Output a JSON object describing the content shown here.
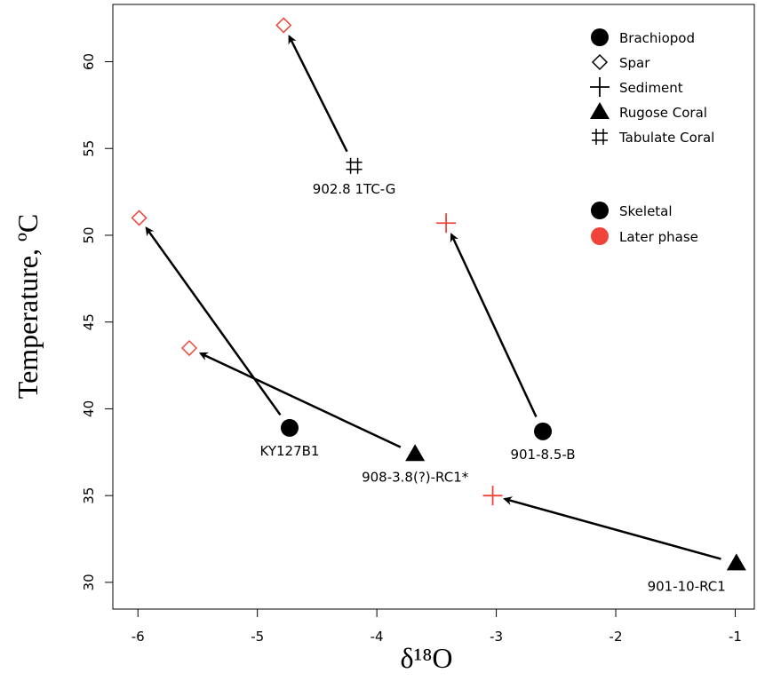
{
  "chart_data": {
    "type": "scatter",
    "xlabel": "δ¹⁸O",
    "ylabel": "Temperature, ºC",
    "xlim": [
      -6.21,
      -0.84
    ],
    "ylim": [
      28.46,
      63.3
    ],
    "xticks": [
      -6,
      -5,
      -4,
      -3,
      -2,
      -1
    ],
    "yticks": [
      30,
      35,
      40,
      45,
      50,
      55,
      60
    ],
    "legend": "upper right",
    "series": [
      {
        "name": "Brachiopod",
        "marker": "circle",
        "x": [
          -4.73,
          -2.61
        ],
        "values": [
          38.9,
          38.7
        ],
        "colors": [
          "#000000",
          "#000000"
        ],
        "point_labels": [
          "KY127B1",
          "901-8.5-B"
        ]
      },
      {
        "name": "Spar",
        "marker": "diamond",
        "x": [
          -4.78,
          -5.99,
          -5.57
        ],
        "values": [
          62.1,
          51.0,
          43.5
        ],
        "colors": [
          "#f0443a",
          "#f0443a",
          "#f0443a"
        ],
        "point_labels": [
          null,
          null,
          null
        ]
      },
      {
        "name": "Sediment",
        "marker": "plus",
        "x": [
          -3.42,
          -3.03
        ],
        "values": [
          50.7,
          35.0
        ],
        "colors": [
          "#f0443a",
          "#f0443a"
        ],
        "point_labels": [
          null,
          null
        ]
      },
      {
        "name": "Rugose Coral",
        "marker": "triangle",
        "x": [
          -3.68,
          -0.99
        ],
        "values": [
          37.4,
          31.1
        ],
        "colors": [
          "#000000",
          "#000000"
        ],
        "point_labels": [
          "908-3.8(?)-RC1*",
          "901-10-RC1"
        ]
      },
      {
        "name": "Tabulate Coral",
        "marker": "grid",
        "x": [
          -4.19
        ],
        "values": [
          54.0
        ],
        "colors": [
          "#000000"
        ],
        "point_labels": [
          "902.8 1TC-G"
        ]
      }
    ],
    "color_legend": [
      {
        "name": "Skeletal",
        "color": "#000000"
      },
      {
        "name": "Later phase",
        "color": "#f0443a"
      }
    ],
    "arrows": [
      {
        "from": [
          0,
          0
        ],
        "to": [
          1,
          1
        ]
      },
      {
        "from": [
          0,
          1
        ],
        "to": [
          2,
          0
        ]
      },
      {
        "from": [
          3,
          0
        ],
        "to": [
          1,
          2
        ]
      },
      {
        "from": [
          3,
          1
        ],
        "to": [
          2,
          1
        ]
      },
      {
        "from": [
          4,
          0
        ],
        "to": [
          1,
          0
        ]
      }
    ]
  }
}
